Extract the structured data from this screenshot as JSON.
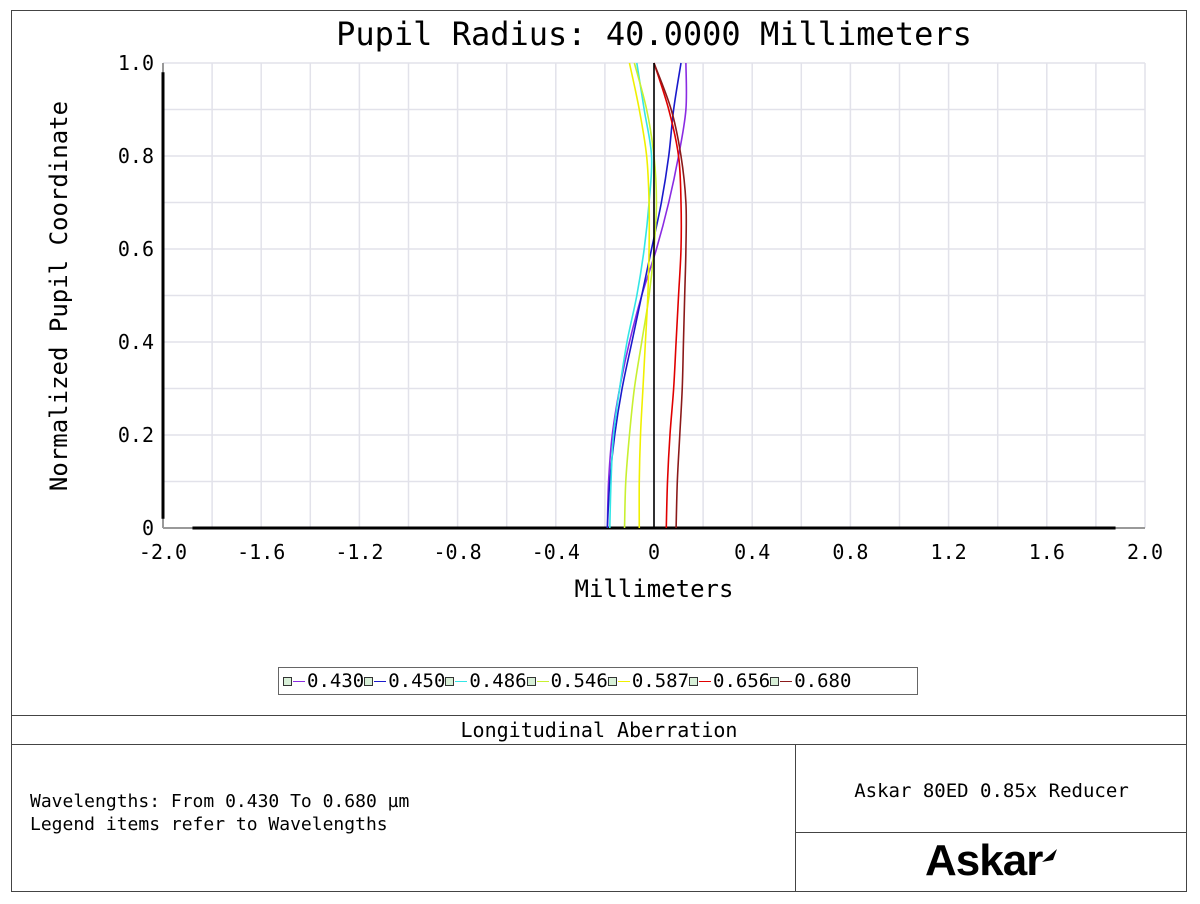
{
  "chart_data": {
    "type": "line",
    "title": "Pupil Radius: 40.0000 Millimeters",
    "xlabel": "Millimeters",
    "ylabel": "Normalized Pupil Coordinate",
    "xlim": [
      -2.0,
      2.0
    ],
    "ylim": [
      0,
      1.0
    ],
    "x_ticks": [
      "-2.0",
      "-1.6",
      "-1.2",
      "-0.8",
      "-0.4",
      "0",
      "0.4",
      "0.8",
      "1.2",
      "1.6",
      "2.0"
    ],
    "y_ticks": [
      "0",
      "0.2",
      "0.4",
      "0.6",
      "0.8",
      "1.0"
    ],
    "grid": true,
    "legend_position": "bottom-center",
    "series": [
      {
        "name": "0.430",
        "color": "#8a2be2",
        "y": [
          0,
          0.1,
          0.2,
          0.3,
          0.4,
          0.5,
          0.6,
          0.7,
          0.8,
          0.9,
          1.0
        ],
        "x": [
          -0.19,
          -0.185,
          -0.17,
          -0.14,
          -0.1,
          -0.05,
          0.01,
          0.06,
          0.1,
          0.13,
          0.13
        ]
      },
      {
        "name": "0.450",
        "color": "#1a1acc",
        "y": [
          0,
          0.1,
          0.2,
          0.3,
          0.4,
          0.5,
          0.6,
          0.7,
          0.8,
          0.9,
          1.0
        ],
        "x": [
          -0.19,
          -0.18,
          -0.16,
          -0.13,
          -0.09,
          -0.05,
          -0.01,
          0.03,
          0.06,
          0.08,
          0.11
        ]
      },
      {
        "name": "0.486",
        "color": "#33e6e6",
        "y": [
          0,
          0.1,
          0.2,
          0.3,
          0.4,
          0.5,
          0.6,
          0.7,
          0.8,
          0.9,
          1.0
        ],
        "x": [
          -0.18,
          -0.175,
          -0.165,
          -0.14,
          -0.11,
          -0.07,
          -0.04,
          -0.02,
          -0.01,
          -0.04,
          -0.07
        ]
      },
      {
        "name": "0.546",
        "color": "#c8f030",
        "y": [
          0,
          0.1,
          0.2,
          0.3,
          0.4,
          0.5,
          0.6,
          0.7,
          0.8,
          0.9,
          1.0
        ],
        "x": [
          -0.12,
          -0.115,
          -0.1,
          -0.08,
          -0.05,
          -0.02,
          0.0,
          0.01,
          0.0,
          -0.03,
          -0.08
        ]
      },
      {
        "name": "0.587",
        "color": "#f0f000",
        "y": [
          0,
          0.1,
          0.2,
          0.3,
          0.4,
          0.5,
          0.6,
          0.7,
          0.8,
          0.9,
          1.0
        ],
        "x": [
          -0.06,
          -0.06,
          -0.055,
          -0.045,
          -0.035,
          -0.025,
          -0.02,
          -0.02,
          -0.03,
          -0.06,
          -0.1
        ]
      },
      {
        "name": "0.656",
        "color": "#e00000",
        "y": [
          0,
          0.1,
          0.2,
          0.3,
          0.4,
          0.5,
          0.6,
          0.7,
          0.8,
          0.9,
          1.0
        ],
        "x": [
          0.05,
          0.055,
          0.065,
          0.08,
          0.09,
          0.1,
          0.11,
          0.11,
          0.1,
          0.06,
          0.0
        ]
      },
      {
        "name": "0.680",
        "color": "#8b1a1a",
        "y": [
          0,
          0.1,
          0.2,
          0.3,
          0.4,
          0.5,
          0.6,
          0.7,
          0.8,
          0.9,
          1.0
        ],
        "x": [
          0.09,
          0.095,
          0.105,
          0.115,
          0.12,
          0.125,
          0.13,
          0.13,
          0.11,
          0.07,
          0.0
        ]
      },
      {
        "name": "",
        "color": "#000000",
        "y": [
          0,
          0.1,
          0.2,
          0.3,
          0.4,
          0.5,
          0.6,
          0.7,
          0.8,
          0.9,
          1.0
        ],
        "x": [
          0,
          0,
          0,
          0,
          0,
          0,
          0,
          0,
          0,
          0,
          0
        ]
      }
    ]
  },
  "title_block": {
    "analysis_title": "Longitudinal Aberration",
    "lines": [
      "Wavelengths: From 0.430 To 0.680 µm",
      "Legend items refer to Wavelengths"
    ],
    "system_name": "Askar 80ED 0.85x Reducer",
    "logo_text": "Askar"
  }
}
